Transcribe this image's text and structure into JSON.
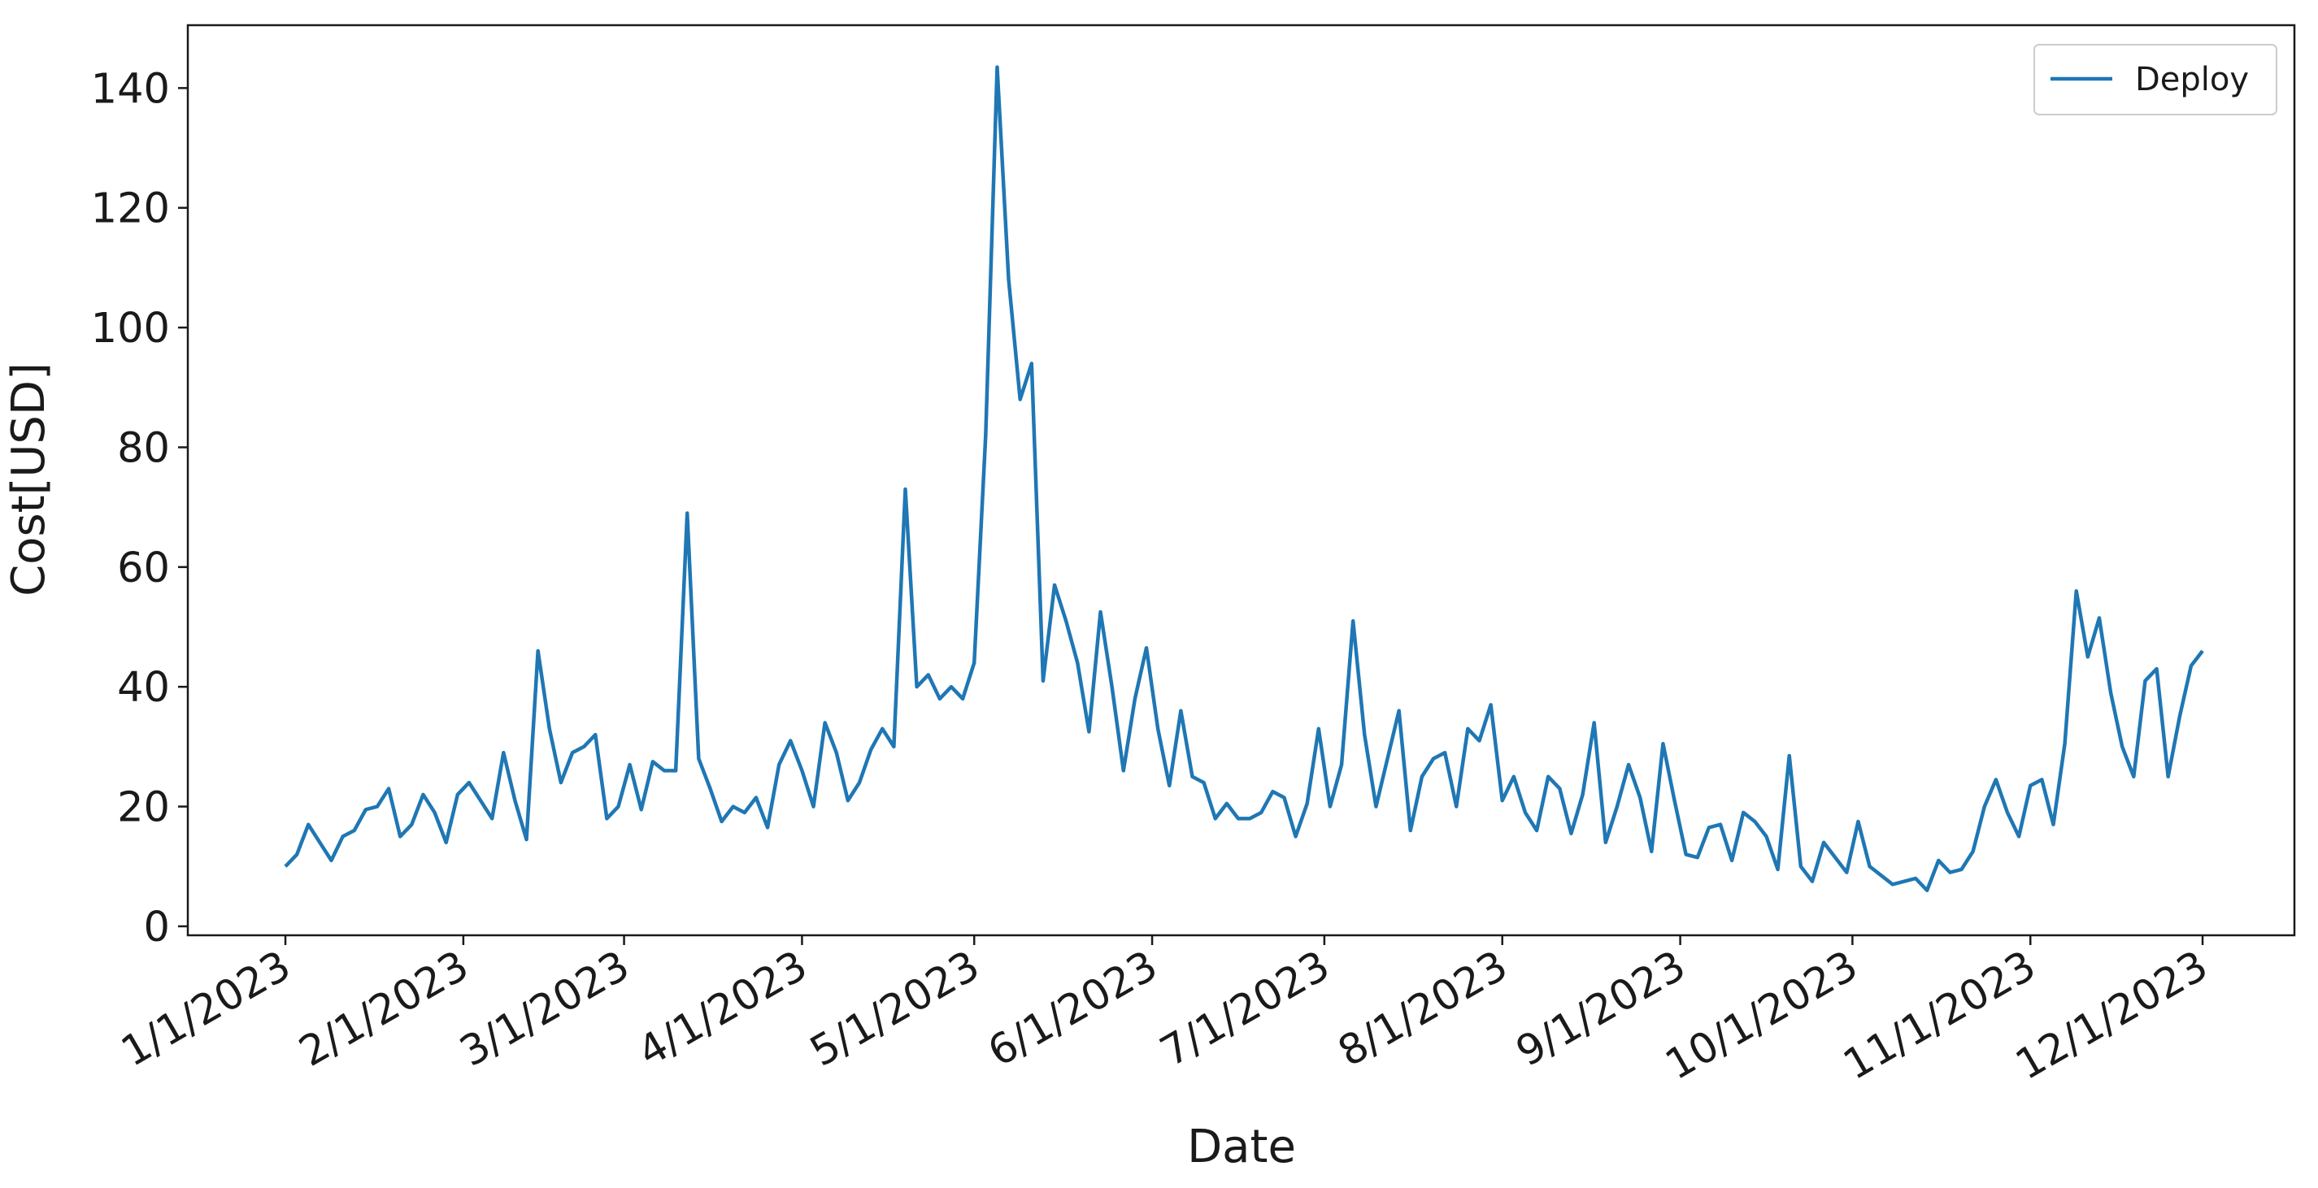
{
  "chart_data": {
    "type": "line",
    "x_label": "Date",
    "y_label": "Cost[USD]",
    "x": [
      "1/1/2023",
      "1/3/2023",
      "1/5/2023",
      "1/7/2023",
      "1/9/2023",
      "1/11/2023",
      "1/13/2023",
      "1/15/2023",
      "1/17/2023",
      "1/19/2023",
      "1/21/2023",
      "1/23/2023",
      "1/25/2023",
      "1/27/2023",
      "1/29/2023",
      "1/31/2023",
      "2/2/2023",
      "2/4/2023",
      "2/6/2023",
      "2/8/2023",
      "2/10/2023",
      "2/12/2023",
      "2/14/2023",
      "2/16/2023",
      "2/18/2023",
      "2/20/2023",
      "2/22/2023",
      "2/24/2023",
      "2/26/2023",
      "2/28/2023",
      "3/2/2023",
      "3/4/2023",
      "3/6/2023",
      "3/8/2023",
      "3/10/2023",
      "3/12/2023",
      "3/14/2023",
      "3/16/2023",
      "3/18/2023",
      "3/20/2023",
      "3/22/2023",
      "3/24/2023",
      "3/26/2023",
      "3/28/2023",
      "3/30/2023",
      "4/1/2023",
      "4/3/2023",
      "4/5/2023",
      "4/7/2023",
      "4/9/2023",
      "4/11/2023",
      "4/13/2023",
      "4/15/2023",
      "4/17/2023",
      "4/19/2023",
      "4/21/2023",
      "4/23/2023",
      "4/25/2023",
      "4/27/2023",
      "4/29/2023",
      "5/1/2023",
      "5/3/2023",
      "5/5/2023",
      "5/7/2023",
      "5/9/2023",
      "5/11/2023",
      "5/13/2023",
      "5/15/2023",
      "5/17/2023",
      "5/19/2023",
      "5/21/2023",
      "5/23/2023",
      "5/25/2023",
      "5/27/2023",
      "5/29/2023",
      "5/31/2023",
      "6/2/2023",
      "6/4/2023",
      "6/6/2023",
      "6/8/2023",
      "6/10/2023",
      "6/12/2023",
      "6/14/2023",
      "6/16/2023",
      "6/18/2023",
      "6/20/2023",
      "6/22/2023",
      "6/24/2023",
      "6/26/2023",
      "6/28/2023",
      "6/30/2023",
      "7/2/2023",
      "7/4/2023",
      "7/6/2023",
      "7/8/2023",
      "7/10/2023",
      "7/12/2023",
      "7/14/2023",
      "7/16/2023",
      "7/18/2023",
      "7/20/2023",
      "7/22/2023",
      "7/24/2023",
      "7/26/2023",
      "7/28/2023",
      "7/30/2023",
      "8/1/2023",
      "8/3/2023",
      "8/5/2023",
      "8/7/2023",
      "8/9/2023",
      "8/11/2023",
      "8/13/2023",
      "8/15/2023",
      "8/17/2023",
      "8/19/2023",
      "8/21/2023",
      "8/23/2023",
      "8/25/2023",
      "8/27/2023",
      "8/29/2023",
      "8/31/2023",
      "9/2/2023",
      "9/4/2023",
      "9/6/2023",
      "9/8/2023",
      "9/10/2023",
      "9/12/2023",
      "9/14/2023",
      "9/16/2023",
      "9/18/2023",
      "9/20/2023",
      "9/22/2023",
      "9/24/2023",
      "9/26/2023",
      "9/28/2023",
      "9/30/2023",
      "10/2/2023",
      "10/4/2023",
      "10/6/2023",
      "10/8/2023",
      "10/10/2023",
      "10/12/2023",
      "10/14/2023",
      "10/16/2023",
      "10/18/2023",
      "10/20/2023",
      "10/22/2023",
      "10/24/2023",
      "10/26/2023",
      "10/28/2023",
      "10/30/2023",
      "11/1/2023",
      "11/3/2023",
      "11/5/2023",
      "11/7/2023",
      "11/9/2023",
      "11/11/2023",
      "11/13/2023",
      "11/15/2023",
      "11/17/2023",
      "11/19/2023",
      "11/21/2023",
      "11/23/2023",
      "11/25/2023",
      "11/27/2023",
      "11/29/2023",
      "12/1/2023"
    ],
    "series": [
      {
        "name": "Deploy",
        "color": "#1f77b4",
        "values": [
          10,
          12,
          17,
          14,
          11,
          15,
          16,
          19.5,
          20,
          23,
          15,
          17,
          22,
          19,
          14,
          22,
          24,
          21,
          18,
          29,
          21,
          14.5,
          46,
          33,
          24,
          29,
          30,
          32,
          18,
          20,
          27,
          19.5,
          27.5,
          26,
          26,
          69,
          28,
          23,
          17.5,
          20,
          19,
          21.5,
          16.5,
          27,
          31,
          26,
          20,
          34,
          29,
          21,
          24,
          29.5,
          33,
          30,
          73,
          40,
          42,
          38,
          40,
          38,
          44,
          82,
          143.5,
          108,
          88,
          94,
          41,
          57,
          51,
          44,
          32.5,
          52.5,
          40,
          26,
          38,
          46.5,
          33,
          23.5,
          36,
          25,
          24,
          18,
          20.5,
          18,
          18,
          19,
          22.5,
          21.5,
          15,
          20.5,
          33,
          20,
          27,
          51,
          32,
          20,
          28,
          36,
          16,
          25,
          28,
          29,
          20,
          33,
          31,
          37,
          21,
          25,
          19,
          16,
          25,
          23,
          15.5,
          22,
          34,
          14,
          20,
          27,
          21.5,
          12.5,
          30.5,
          21,
          12,
          11.5,
          16.5,
          17,
          11,
          19,
          17.5,
          15,
          9.5,
          28.5,
          10,
          7.5,
          14,
          11.5,
          9,
          17.5,
          10,
          8.5,
          7,
          7.5,
          8,
          6,
          11,
          9,
          9.5,
          12.5,
          20,
          24.5,
          19,
          15,
          23.5,
          24.5,
          17,
          30.5,
          56,
          45,
          51.5,
          39,
          30,
          25,
          41,
          43,
          25,
          35,
          43.5,
          46
        ]
      }
    ],
    "xlim": [
      "12/15/2022",
      "12/17/2023"
    ],
    "xticks": [
      "1/1/2023",
      "2/1/2023",
      "3/1/2023",
      "4/1/2023",
      "5/1/2023",
      "6/1/2023",
      "7/1/2023",
      "8/1/2023",
      "9/1/2023",
      "10/1/2023",
      "11/1/2023",
      "12/1/2023"
    ],
    "ylim": [
      -1.5,
      150.5
    ],
    "yticks": [
      0,
      20,
      40,
      60,
      80,
      100,
      120,
      140
    ],
    "grid": false,
    "legend": "upper right"
  }
}
